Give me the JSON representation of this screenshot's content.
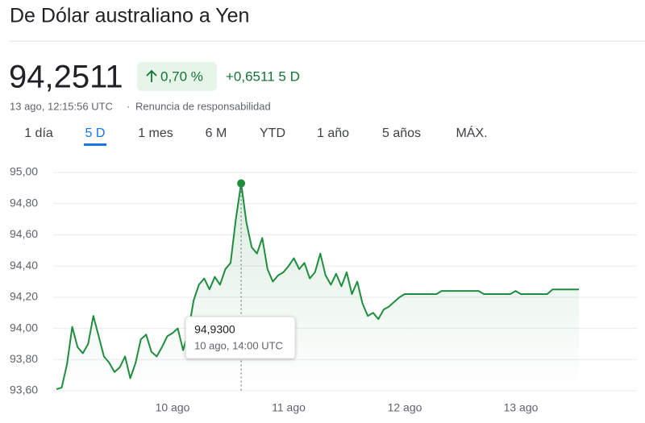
{
  "chart_data": {
    "type": "line",
    "title": "De Dólar australiano a Yen",
    "price": "94,2511",
    "change_percent": "0,70 %",
    "change": "+0,6511 5 D",
    "timestamp": "13 ago, 12:15:56 UTC",
    "disclaimer": "Renuncia de responsabilidad",
    "ranges": [
      "1 día",
      "5 D",
      "1 mes",
      "6 M",
      "YTD",
      "1 año",
      "5 años",
      "MÁX."
    ],
    "selected_range": 1,
    "color": "#1e8e3e",
    "grid": true,
    "ylim": [
      93.6,
      95.0
    ],
    "yticks": [
      {
        "value": 93.6,
        "label": "93,60"
      },
      {
        "value": 93.8,
        "label": "93,80"
      },
      {
        "value": 94.0,
        "label": "94,00"
      },
      {
        "value": 94.2,
        "label": "94,20"
      },
      {
        "value": 94.4,
        "label": "94,40"
      },
      {
        "value": 94.6,
        "label": "94,60"
      },
      {
        "value": 94.8,
        "label": "94,80"
      },
      {
        "value": 95.0,
        "label": "95,00"
      }
    ],
    "categories": [
      null,
      null,
      null,
      null,
      null,
      null,
      null,
      null,
      null,
      null,
      null,
      null,
      null,
      null,
      null,
      null,
      null,
      null,
      null,
      null,
      null,
      null,
      "10 ago",
      null,
      null,
      null,
      null,
      null,
      null,
      null,
      null,
      null,
      null,
      null,
      null,
      null,
      null,
      null,
      null,
      null,
      null,
      null,
      null,
      null,
      "11 ago",
      null,
      null,
      null,
      null,
      null,
      null,
      null,
      null,
      null,
      null,
      null,
      null,
      null,
      null,
      null,
      null,
      null,
      null,
      null,
      null,
      null,
      "12 ago",
      null,
      null,
      null,
      null,
      null,
      null,
      null,
      null,
      null,
      null,
      null,
      null,
      null,
      null,
      null,
      null,
      null,
      null,
      null,
      null,
      null,
      "13 ago",
      null,
      null,
      null,
      null,
      null,
      null,
      null,
      null,
      null,
      null,
      null
    ],
    "values": [
      93.61,
      93.62,
      93.77,
      94.01,
      93.88,
      93.84,
      93.9,
      94.08,
      93.95,
      93.82,
      93.78,
      93.72,
      93.75,
      93.82,
      93.68,
      93.78,
      93.93,
      93.96,
      93.85,
      93.82,
      93.88,
      93.95,
      93.97,
      94.0,
      93.86,
      93.98,
      94.18,
      94.28,
      94.32,
      94.25,
      94.33,
      94.28,
      94.38,
      94.42,
      94.7,
      94.93,
      94.68,
      94.52,
      94.48,
      94.58,
      94.38,
      94.3,
      94.34,
      94.36,
      94.4,
      94.45,
      94.38,
      94.42,
      94.32,
      94.36,
      94.48,
      94.34,
      94.28,
      94.35,
      94.27,
      94.36,
      94.22,
      94.3,
      94.16,
      94.08,
      94.1,
      94.06,
      94.12,
      94.14,
      94.17,
      94.2,
      94.22,
      94.22,
      94.22,
      94.22,
      94.22,
      94.22,
      94.22,
      94.24,
      94.24,
      94.24,
      94.24,
      94.24,
      94.24,
      94.24,
      94.24,
      94.22,
      94.22,
      94.22,
      94.22,
      94.22,
      94.22,
      94.24,
      94.22,
      94.22,
      94.22,
      94.22,
      94.22,
      94.22,
      94.25,
      94.25,
      94.25,
      94.25,
      94.25,
      94.25
    ],
    "value_labels": [
      null,
      null,
      null,
      null,
      null,
      null,
      null,
      null,
      null,
      null,
      null,
      null,
      null,
      null,
      null,
      null,
      null,
      null,
      null,
      null,
      null,
      null,
      null,
      null,
      null,
      null,
      null,
      null,
      null,
      null,
      null,
      null,
      null,
      null,
      null,
      "94,9300",
      null,
      null,
      null,
      null,
      null,
      null,
      null,
      null,
      null,
      null,
      null,
      null,
      null,
      null,
      null,
      null,
      null,
      null,
      null,
      null,
      null,
      null,
      null,
      null,
      null,
      null,
      null,
      null,
      null,
      null,
      null,
      null,
      null,
      null,
      null,
      null,
      null,
      null,
      null,
      null,
      null,
      null,
      null,
      null,
      null,
      null,
      null,
      null,
      null,
      null,
      null,
      null,
      null,
      null,
      null,
      null,
      null,
      null,
      null,
      null,
      null,
      null,
      null,
      null
    ],
    "tooltip_time": "10 ago, 14:00 UTC"
  }
}
